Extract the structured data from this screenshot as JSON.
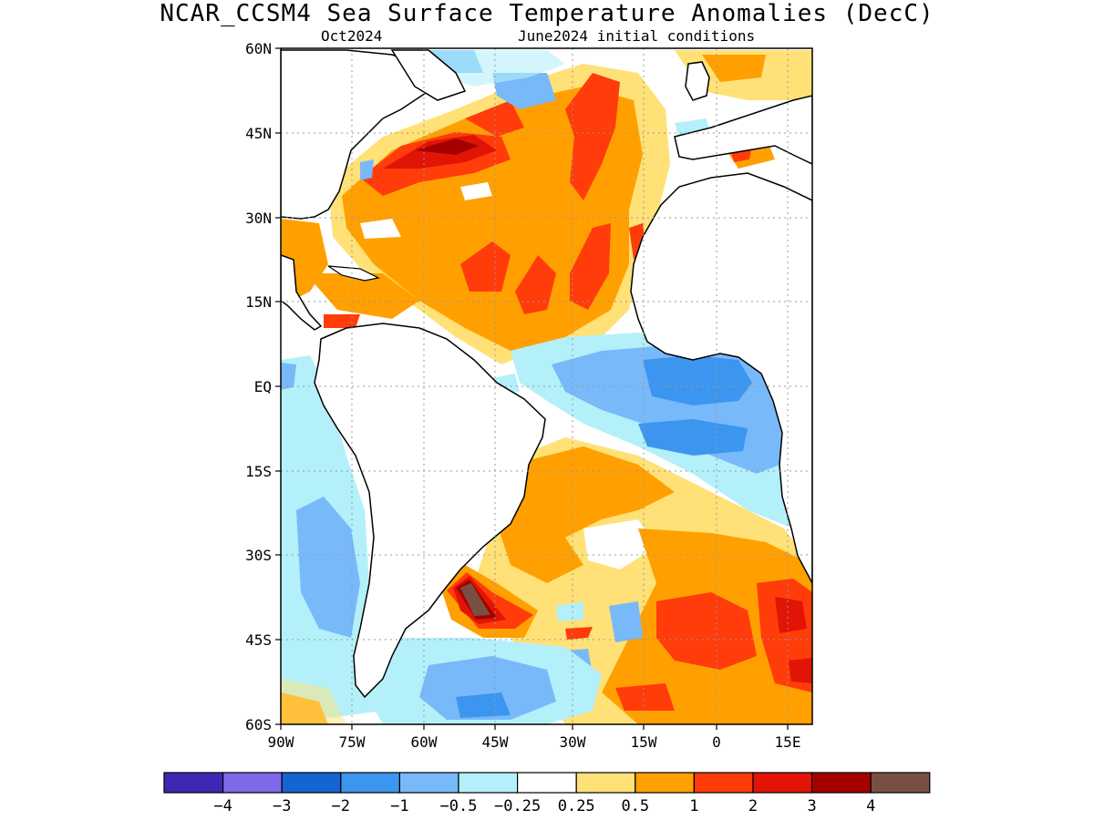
{
  "title": "NCAR_CCSM4 Sea Surface Temperature Anomalies (DecC)",
  "subtitle_left": "Oct2024",
  "subtitle_right": "June2024 initial conditions",
  "lat_labels": [
    "60N",
    "45N",
    "30N",
    "15N",
    "EQ",
    "15S",
    "30S",
    "45S",
    "60S"
  ],
  "lon_labels": [
    "90W",
    "75W",
    "60W",
    "45W",
    "30W",
    "15W",
    "0",
    "15E"
  ],
  "colorbar": {
    "colors": [
      "#3c28b4",
      "#7e6ae8",
      "#1464d2",
      "#3c96f0",
      "#78b9fa",
      "#b4f0fa",
      "#ffffff",
      "#ffe178",
      "#ffa000",
      "#ff3c0a",
      "#e11405",
      "#a50000",
      "#7a4f43"
    ],
    "labels": [
      "-4",
      "-3",
      "-2",
      "-1",
      "-0.5",
      "-0.25",
      "0.25",
      "0.5",
      "1",
      "2",
      "3",
      "4"
    ]
  }
}
